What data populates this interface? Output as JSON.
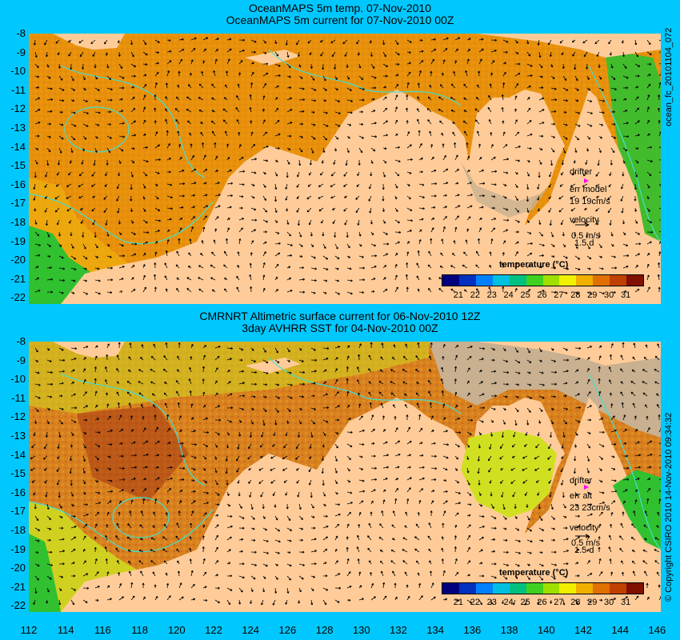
{
  "top": {
    "title1": "OceanMAPS 5m temp. 07-Nov-2010",
    "title2": "OceanMAPS 5m current for 07-Nov-2010 00Z",
    "side_label": "ocean_fc_20101104_072",
    "drifter": "drifter",
    "err_label": "err model",
    "err_value": "19 19cm/s",
    "velocity": "velocity",
    "velocity_scale": "0.5 m/s",
    "velocity_days": "1.5 d",
    "colorbar_title": "temperature (°C)"
  },
  "bottom": {
    "title1": "CMRNRT Altimetric surface current for 06-Nov-2010 12Z",
    "title2": "3day AVHRR SST for 04-Nov-2010 00Z",
    "side_label": "© Copyright CSIRO 2010   14-Nov-2010 09:34:32",
    "drifter": "drifter",
    "err_label": "err alt",
    "err_value": "23 23cm/s",
    "velocity": "velocity",
    "velocity_scale": "0.5 m/s",
    "velocity_days": "1.5 d",
    "colorbar_title": "temperature (°C)"
  },
  "axes": {
    "lat_ticks": [
      "-8",
      "-9",
      "-10",
      "-11",
      "-12",
      "-13",
      "-14",
      "-15",
      "-16",
      "-17",
      "-18",
      "-19",
      "-20",
      "-21",
      "-22"
    ],
    "lon_ticks": [
      "112",
      "114",
      "116",
      "118",
      "120",
      "122",
      "124",
      "126",
      "128",
      "130",
      "132",
      "134",
      "136",
      "138",
      "140",
      "142",
      "144",
      "146"
    ]
  },
  "colorbar": {
    "labels": [
      "21",
      "22",
      "23",
      "24",
      "25",
      "26",
      "27",
      "28",
      "29",
      "30",
      "31"
    ],
    "colors": [
      "#00007f",
      "#0030c0",
      "#0080ff",
      "#00c0e0",
      "#00c080",
      "#40d020",
      "#a0e000",
      "#f0f000",
      "#f0b000",
      "#e07000",
      "#c04000",
      "#801000"
    ]
  },
  "colors": {
    "background": "#00c8ff",
    "land": "#ffcc99",
    "ocean_warm": "#e8900c",
    "ocean_mid": "#f0b010",
    "cool_water": "#30c030",
    "no_data": "#c8b090",
    "contour": "#40e0d0",
    "drifter": "#ff00ff"
  }
}
